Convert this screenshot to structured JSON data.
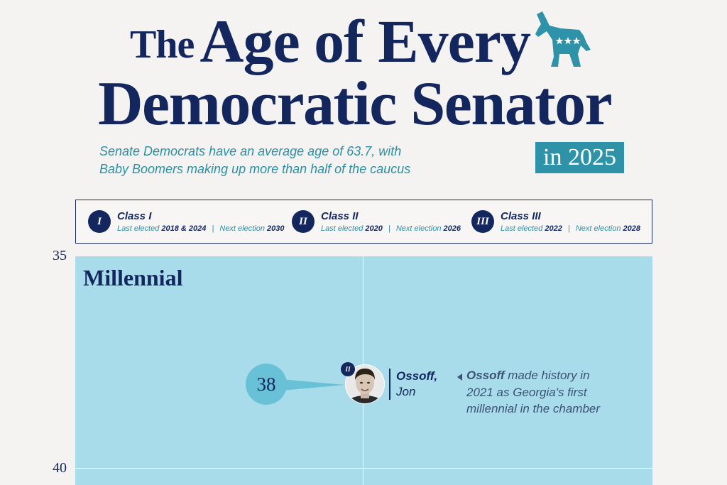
{
  "title": {
    "part1": "The",
    "part2": "Age of Every",
    "line2": "Democratic Senator",
    "badge": "in 2025"
  },
  "subtitle": {
    "line1": "Senate Democrats have an average age of 63.7, with",
    "line2": "Baby Boomers making up more than half of the caucus"
  },
  "legend": [
    {
      "numeral": "I",
      "name": "Class I",
      "elected_label": "Last elected",
      "elected": "2018 & 2024",
      "next_label": "Next election",
      "next": "2030"
    },
    {
      "numeral": "II",
      "name": "Class II",
      "elected_label": "Last elected",
      "elected": "2020",
      "next_label": "Next election",
      "next": "2026"
    },
    {
      "numeral": "III",
      "name": "Class III",
      "elected_label": "Last elected",
      "elected": "2022",
      "next_label": "Next election",
      "next": "2028"
    }
  ],
  "axis": {
    "tick_top": "35",
    "tick_bottom": "40"
  },
  "generation": "Millennial",
  "senator": {
    "age": "38",
    "class_numeral": "II",
    "last_name": "Ossoff,",
    "first_name": "Jon"
  },
  "annotation": {
    "bold": "Ossoff",
    "text1": " made history in",
    "line2": "2021 as Georgia's first",
    "line3": "millennial in the chamber"
  },
  "colors": {
    "navy": "#13265e",
    "teal": "#2e93a8",
    "plot_bg": "#a9dcea",
    "bubble": "#68c1d6"
  }
}
